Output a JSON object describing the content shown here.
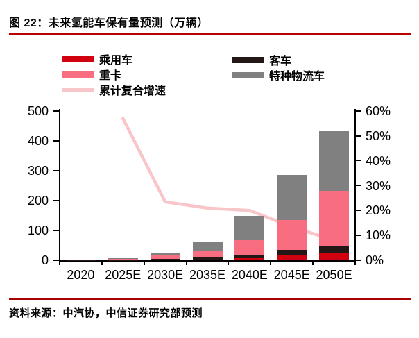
{
  "header": {
    "title": "图 22：未来氢能车保有量预测（万辆）"
  },
  "footer": {
    "source": "资料来源：中汽协，中信证券研究部预测"
  },
  "colors": {
    "passenger": "#d0000f",
    "bus": "#231815",
    "truck": "#f96d80",
    "logistics": "#808080",
    "growth_line": "#f8c5c8",
    "title_rule": "#b80000",
    "footer_rule": "#a80000",
    "axis": "#000000"
  },
  "legend": {
    "items": [
      {
        "id": "passenger",
        "label": "乘用车",
        "type": "bar"
      },
      {
        "id": "bus",
        "label": "客车",
        "type": "bar"
      },
      {
        "id": "truck",
        "label": "重卡",
        "type": "bar"
      },
      {
        "id": "logistics",
        "label": "特种物流车",
        "type": "bar"
      },
      {
        "id": "growth",
        "label": "累计复合增速",
        "type": "line"
      }
    ]
  },
  "chart_data": {
    "type": "bar",
    "subtype": "stacked bars with overlay line on secondary axis",
    "title": "未来氢能车保有量预测（万辆）",
    "categories": [
      "2020",
      "2025E",
      "2030E",
      "2035E",
      "2040E",
      "2045E",
      "2050E"
    ],
    "unit": "万辆",
    "series": [
      {
        "name": "乘用车",
        "color_key": "passenger",
        "values": [
          0.3,
          0.5,
          1.5,
          3,
          8,
          16,
          25
        ]
      },
      {
        "name": "客车",
        "color_key": "bus",
        "values": [
          0.2,
          0.5,
          3.5,
          7,
          8,
          19,
          21
        ]
      },
      {
        "name": "重卡",
        "color_key": "truck",
        "values": [
          1,
          4,
          11,
          20,
          52,
          101,
          186
        ]
      },
      {
        "name": "特种物流车",
        "color_key": "logistics",
        "values": [
          0.5,
          3,
          8,
          30,
          80,
          150,
          200
        ]
      }
    ],
    "stack_order_bottom_to_top": [
      "乘用车",
      "客车",
      "重卡",
      "特种物流车"
    ],
    "totals_approx": [
      2,
      8,
      24,
      60,
      148,
      286,
      432
    ],
    "line_series": {
      "name": "累计复合增速",
      "color_key": "growth_line",
      "axis": "right",
      "values_pct": [
        null,
        57,
        23.5,
        21,
        20,
        13.5,
        8
      ]
    },
    "left_axis": {
      "label": "",
      "min": 0,
      "max": 500,
      "ticks": [
        0,
        100,
        200,
        300,
        400,
        500
      ]
    },
    "right_axis": {
      "label": "",
      "min": 0,
      "max": 60,
      "ticks": [
        "0%",
        "10%",
        "20%",
        "30%",
        "40%",
        "50%",
        "60%"
      ]
    },
    "grid": false,
    "legend_position": "top"
  }
}
